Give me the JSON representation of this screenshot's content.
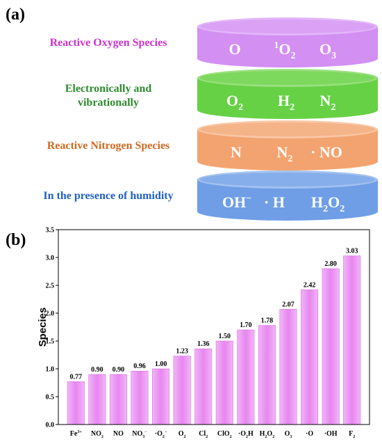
{
  "panel_a": {
    "label": "(a)",
    "layers": [
      {
        "description": "Reactive Oxygen Species",
        "description_lines": [
          "Reactive Oxygen Species"
        ],
        "description_color": "#cc33cc",
        "fill": "#d38ff2",
        "rim": "#e2b6f8",
        "species": [
          {
            "pre": "",
            "main": "O",
            "sub": "",
            "sup": ""
          },
          {
            "pre": "",
            "main": "O",
            "sub": "2",
            "sup": "1"
          },
          {
            "pre": "",
            "main": "O",
            "sub": "3",
            "sup": ""
          }
        ]
      },
      {
        "description": "Electronically and vibrationally",
        "description_lines": [
          "Electronically and",
          "vibrationally"
        ],
        "description_color": "#2e8b2e",
        "fill": "#66d144",
        "rim": "#99e07f",
        "species": [
          {
            "pre": "",
            "main": "O",
            "sub": "2",
            "sup": ""
          },
          {
            "pre": "",
            "main": "H",
            "sub": "2",
            "sup": ""
          },
          {
            "pre": "",
            "main": "N",
            "sub": "2",
            "sup": ""
          }
        ]
      },
      {
        "description": "Reactive Nitrogen Species",
        "description_lines": [
          "Reactive Nitrogen Species"
        ],
        "description_color": "#d2691e",
        "fill": "#f3a36f",
        "rim": "#f8c7a6",
        "species": [
          {
            "pre": "",
            "main": "N",
            "sub": "",
            "sup": ""
          },
          {
            "pre": "",
            "main": "N",
            "sub": "2",
            "sup": ""
          },
          {
            "pre": "· ",
            "main": "NO",
            "sub": "",
            "sup": ""
          }
        ]
      },
      {
        "description": "In the presence of humidity",
        "description_lines": [
          "In the presence of humidity"
        ],
        "description_color": "#1f5fbf",
        "fill": "#6f9ee6",
        "rim": "#a3c2f0",
        "species": [
          {
            "pre": "",
            "main": "OH",
            "sub": "",
            "sup": "−"
          },
          {
            "pre": "· ",
            "main": "H",
            "sub": "",
            "sup": ""
          },
          {
            "pre": "",
            "main": "H",
            "sub": "2",
            "sup": ""
          },
          {
            "pre": "",
            "main": "O",
            "sub": "2",
            "sup": ""
          }
        ]
      }
    ]
  },
  "panel_b_label": "(b)",
  "chart_data": {
    "type": "bar",
    "ylabel": "Species",
    "xlabel": "",
    "ylim": [
      0,
      3.5
    ],
    "yticks": [
      "0.0",
      "0.5",
      "1.0",
      "1.5",
      "2.0",
      "2.5",
      "3.0",
      "3.5"
    ],
    "bar_color": "#e98cf2",
    "categories": [
      {
        "pre": "",
        "main": "Fe",
        "sub": "",
        "sup": "3+"
      },
      {
        "pre": "",
        "main": "NO",
        "sub": "2",
        "sup": ""
      },
      {
        "pre": "",
        "main": "NO",
        "sub": "",
        "sup": ""
      },
      {
        "pre": "",
        "main": "NO",
        "sub": "3",
        "sup": "−"
      },
      {
        "pre": "·",
        "main": "O",
        "sub": "2",
        "sup": "−"
      },
      {
        "pre": "",
        "main": "O",
        "sub": "2",
        "sup": ""
      },
      {
        "pre": "",
        "main": "Cl",
        "sub": "2",
        "sup": ""
      },
      {
        "pre": "",
        "main": "ClO",
        "sub": "2",
        "sup": ""
      },
      {
        "pre": "·",
        "main": "O",
        "sub": "2",
        "sup": "",
        "post": "H"
      },
      {
        "pre": "",
        "main": "H",
        "sub": "2",
        "sup": "",
        "post": "O",
        "sub2": "2"
      },
      {
        "pre": "",
        "main": "O",
        "sub": "3",
        "sup": ""
      },
      {
        "pre": "·",
        "main": "O",
        "sub": "",
        "sup": ""
      },
      {
        "pre": "·",
        "main": "OH",
        "sub": "",
        "sup": ""
      },
      {
        "pre": "",
        "main": "F",
        "sub": "2",
        "sup": ""
      }
    ],
    "values": [
      0.77,
      0.9,
      0.9,
      0.96,
      1.0,
      1.23,
      1.36,
      1.5,
      1.7,
      1.78,
      2.07,
      2.42,
      2.8,
      3.03
    ],
    "value_labels": [
      "0.77",
      "0.90",
      "0.90",
      "0.96",
      "1.00",
      "1.23",
      "1.36",
      "1.50",
      "1.70",
      "1.78",
      "2.07",
      "2.42",
      "2.80",
      "3.03"
    ]
  }
}
